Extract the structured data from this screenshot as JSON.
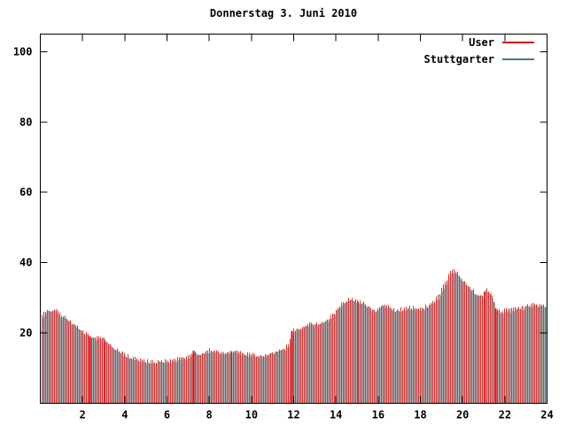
{
  "title": "Donnerstag 3. Juni 2010",
  "legend": {
    "entries": [
      {
        "label": "User",
        "color": "#cc0000"
      },
      {
        "label": "Stuttgarter",
        "color": "#3f7d87"
      }
    ]
  },
  "chart_data": {
    "type": "bar",
    "style": "gnuplot-impulses",
    "title": "Donnerstag 3. Juni 2010",
    "xlabel": "",
    "ylabel": "",
    "xlim": [
      0,
      24
    ],
    "ylim": [
      0,
      105
    ],
    "xticks": [
      2,
      4,
      6,
      8,
      10,
      12,
      14,
      16,
      18,
      20,
      22,
      24
    ],
    "yticks": [
      20,
      40,
      60,
      80,
      100
    ],
    "grid": false,
    "legend_position": "top-right",
    "sample_minutes": 5,
    "series": [
      {
        "name": "User",
        "color": "#cc0000",
        "profile": [
          [
            0,
            24
          ],
          [
            0.2,
            26
          ],
          [
            0.5,
            26.5
          ],
          [
            0.7,
            27
          ],
          [
            0.9,
            25.5
          ],
          [
            1.1,
            25
          ],
          [
            1.4,
            23.5
          ],
          [
            1.7,
            22
          ],
          [
            2.0,
            20.5
          ],
          [
            2.33,
            19
          ],
          [
            2.6,
            18.5
          ],
          [
            2.9,
            19
          ],
          [
            3.2,
            17.5
          ],
          [
            3.5,
            16
          ],
          [
            3.8,
            15
          ],
          [
            4.0,
            14
          ],
          [
            4.3,
            13
          ],
          [
            4.6,
            12.5
          ],
          [
            5.0,
            12
          ],
          [
            5.5,
            12
          ],
          [
            6.0,
            12
          ],
          [
            6.4,
            12.5
          ],
          [
            6.8,
            13
          ],
          [
            7.1,
            13.5
          ],
          [
            7.25,
            15
          ],
          [
            7.4,
            14
          ],
          [
            7.7,
            14.5
          ],
          [
            8.0,
            15
          ],
          [
            8.3,
            15
          ],
          [
            8.6,
            14.5
          ],
          [
            9.0,
            15
          ],
          [
            9.4,
            14.5
          ],
          [
            9.7,
            14
          ],
          [
            10.0,
            14
          ],
          [
            10.3,
            13.5
          ],
          [
            10.6,
            14
          ],
          [
            11.0,
            14.5
          ],
          [
            11.3,
            15
          ],
          [
            11.6,
            16
          ],
          [
            11.8,
            17
          ],
          [
            11.92,
            20.5
          ],
          [
            12.1,
            21
          ],
          [
            12.4,
            22
          ],
          [
            12.8,
            22.5
          ],
          [
            13.2,
            23
          ],
          [
            13.6,
            24
          ],
          [
            14.0,
            26.5
          ],
          [
            14.3,
            28.5
          ],
          [
            14.6,
            29.5
          ],
          [
            15.0,
            29.5
          ],
          [
            15.3,
            28.5
          ],
          [
            15.6,
            27.5
          ],
          [
            15.9,
            26.5
          ],
          [
            16.2,
            28.5
          ],
          [
            16.5,
            27.5
          ],
          [
            16.8,
            26.5
          ],
          [
            17.2,
            27
          ],
          [
            17.6,
            27.5
          ],
          [
            18.0,
            27
          ],
          [
            18.4,
            28
          ],
          [
            18.8,
            30
          ],
          [
            19.1,
            33.5
          ],
          [
            19.4,
            37
          ],
          [
            19.6,
            38
          ],
          [
            19.8,
            36.5
          ],
          [
            20.0,
            35
          ],
          [
            20.3,
            33
          ],
          [
            20.6,
            31.5
          ],
          [
            20.9,
            31
          ],
          [
            21.1,
            32.5
          ],
          [
            21.3,
            32
          ],
          [
            21.45,
            30
          ],
          [
            21.58,
            27
          ],
          [
            21.8,
            26
          ],
          [
            22.1,
            26.5
          ],
          [
            22.5,
            27
          ],
          [
            22.9,
            27.5
          ],
          [
            23.3,
            28
          ],
          [
            23.7,
            28
          ],
          [
            24.0,
            28
          ]
        ]
      },
      {
        "name": "Stuttgarter",
        "color": "#3f7d87",
        "offset": -0.45
      }
    ],
    "markers_x": [
      2.33,
      7.25,
      11.92,
      21.58
    ]
  }
}
